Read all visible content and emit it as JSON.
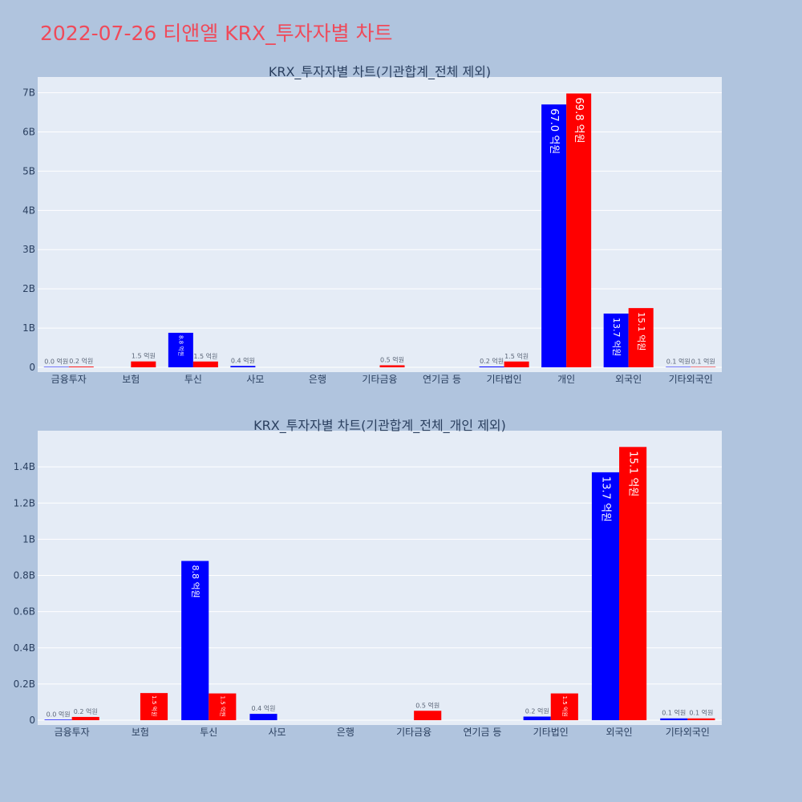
{
  "page": {
    "title": "2022-07-26 티앤엘 KRX_투자자별 차트",
    "background": "#b0c4de",
    "title_color": "#ef4a5a",
    "plot_background": "#e5ecf6",
    "grid_color": "#ffffff",
    "series_colors": [
      "#0000ff",
      "#ff0000"
    ]
  },
  "chart_data": [
    {
      "type": "bar",
      "title": "KRX_투자자별 차트(기관합계_전체 제외)",
      "xlabel": "",
      "ylabel": "",
      "ylim": [
        0,
        7400000000
      ],
      "grid": true,
      "yticks": [
        0,
        1000000000,
        2000000000,
        3000000000,
        4000000000,
        5000000000,
        6000000000,
        7000000000
      ],
      "ytick_labels": [
        "0",
        "1B",
        "2B",
        "3B",
        "4B",
        "5B",
        "6B",
        "7B"
      ],
      "categories": [
        "금융투자",
        "보험",
        "투신",
        "사모",
        "은행",
        "기타금융",
        "연기금 등",
        "기타법인",
        "개인",
        "외국인",
        "기타외국인"
      ],
      "series": [
        {
          "color": "#0000ff",
          "values": [
            3000000,
            null,
            880000000,
            35000000,
            null,
            null,
            null,
            20000000,
            6700000000,
            1370000000,
            10000000
          ],
          "labels": [
            "0.0 억원",
            "",
            "8.8 억원",
            "0.4 억원",
            "",
            "",
            "",
            "0.2 억원",
            "67.0 억원",
            "13.7 억원",
            "0.1 억원"
          ]
        },
        {
          "color": "#ff0000",
          "values": [
            18000000,
            150000000,
            148000000,
            null,
            null,
            52000000,
            null,
            148000000,
            6980000000,
            1510000000,
            10000000
          ],
          "labels": [
            "0.2 억원",
            "1.5 억원",
            "1.5 억원",
            "",
            "",
            "0.5 억원",
            "",
            "1.5 억원",
            "69.8 억원",
            "15.1 억원",
            "0.1 억원"
          ]
        }
      ]
    },
    {
      "type": "bar",
      "title": "KRX_투자자별 차트(기관합계_전체_개인 제외)",
      "xlabel": "",
      "ylabel": "",
      "ylim": [
        0,
        1600000000
      ],
      "grid": true,
      "yticks": [
        0,
        200000000,
        400000000,
        600000000,
        800000000,
        1000000000,
        1200000000,
        1400000000
      ],
      "ytick_labels": [
        "0",
        "0.2B",
        "0.4B",
        "0.6B",
        "0.8B",
        "1B",
        "1.2B",
        "1.4B"
      ],
      "categories": [
        "금융투자",
        "보험",
        "투신",
        "사모",
        "은행",
        "기타금융",
        "연기금 등",
        "기타법인",
        "외국인",
        "기타외국인"
      ],
      "series": [
        {
          "color": "#0000ff",
          "values": [
            3000000,
            null,
            880000000,
            35000000,
            null,
            null,
            null,
            20000000,
            1370000000,
            10000000
          ],
          "labels": [
            "0.0 억원",
            "",
            "8.8 억원",
            "0.4 억원",
            "",
            "",
            "",
            "0.2 억원",
            "13.7 억원",
            "0.1 억원"
          ]
        },
        {
          "color": "#ff0000",
          "values": [
            18000000,
            150000000,
            148000000,
            null,
            null,
            52000000,
            null,
            148000000,
            1510000000,
            10000000
          ],
          "labels": [
            "0.2 억원",
            "1.5 억원",
            "1.5 억원",
            "",
            "",
            "0.5 억원",
            "",
            "1.5 억원",
            "15.1 억원",
            "0.1 억원"
          ]
        }
      ]
    }
  ]
}
